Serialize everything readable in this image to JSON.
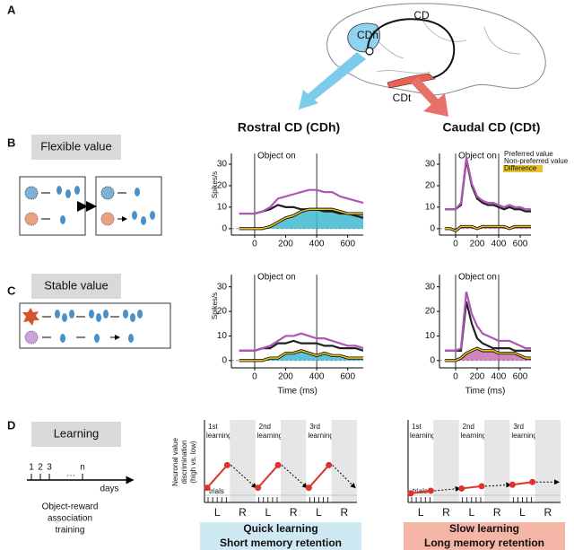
{
  "panel_labels": [
    "A",
    "B",
    "C",
    "D"
  ],
  "brain": {
    "labels": [
      "CD",
      "CDh",
      "CDt"
    ]
  },
  "titles": [
    "Rostral CD (CDh)",
    "Caudal CD (CDt)"
  ],
  "conditions": [
    "Flexible value",
    "Stable value"
  ],
  "event_label": "Object on",
  "y_label": "Spikes/s",
  "x_label": "Time (ms)",
  "series_names": [
    "Preferred value",
    "Non-preferred value",
    "Difference"
  ],
  "series_colors": [
    "#b055b4",
    "#222222",
    "#e8c22a"
  ],
  "x": [
    -100,
    -50,
    0,
    50,
    100,
    150,
    200,
    250,
    300,
    350,
    400,
    450,
    500,
    550,
    600,
    650,
    700
  ],
  "xlim": [
    -150,
    700
  ],
  "xticks": [
    0,
    200,
    400,
    600
  ],
  "ylim": [
    -3,
    35
  ],
  "yticks": [
    0,
    10,
    20,
    30
  ],
  "event_times": [
    0,
    400
  ],
  "plots": [
    {
      "show_y_label": true,
      "show_x_label": false,
      "legend": false,
      "fill": "#3fb8d2",
      "values": [
        [
          7,
          7,
          7,
          8,
          10,
          14,
          15,
          16,
          17,
          18,
          18,
          17,
          17,
          15,
          14,
          13,
          12
        ],
        [
          7,
          7,
          7,
          8,
          9,
          11,
          10,
          10,
          9,
          9,
          9,
          8,
          8,
          7,
          7,
          6,
          5
        ],
        [
          0,
          0,
          0,
          0,
          1,
          3,
          5,
          6,
          8,
          9,
          9,
          9,
          9,
          8,
          7,
          7,
          7
        ]
      ]
    },
    {
      "show_y_label": false,
      "show_x_label": false,
      "legend": true,
      "fill": "#c870b0",
      "values": [
        [
          9,
          9,
          9,
          12,
          33,
          21,
          15,
          13,
          12,
          12,
          11,
          10,
          11,
          10,
          10,
          9,
          9
        ],
        [
          9,
          9,
          9,
          11,
          32,
          20,
          14,
          12,
          11,
          11,
          10,
          9,
          10,
          9,
          9,
          8,
          8
        ],
        [
          0,
          0,
          -1,
          1,
          1,
          1,
          0,
          1,
          1,
          1,
          1,
          1,
          0,
          1,
          1,
          1,
          1
        ]
      ]
    },
    {
      "show_y_label": true,
      "show_x_label": true,
      "legend": false,
      "fill": "#3fb8d2",
      "values": [
        [
          4,
          4,
          4,
          5,
          6,
          8,
          10,
          10,
          11,
          10,
          9,
          9,
          8,
          7,
          6,
          6,
          5
        ],
        [
          4,
          4,
          4,
          5,
          5,
          7,
          7,
          8,
          7,
          7,
          7,
          6,
          6,
          5,
          5,
          5,
          4
        ],
        [
          0,
          0,
          0,
          0,
          1,
          1,
          3,
          3,
          4,
          3,
          2,
          3,
          2,
          2,
          1,
          1,
          1
        ]
      ]
    },
    {
      "show_y_label": false,
      "show_x_label": true,
      "legend": false,
      "fill": "#c870b0",
      "values": [
        [
          4,
          4,
          4,
          5,
          28,
          19,
          14,
          11,
          10,
          9,
          8,
          8,
          8,
          7,
          6,
          5,
          5
        ],
        [
          4,
          4,
          4,
          4,
          24,
          15,
          9,
          7,
          6,
          5,
          5,
          5,
          5,
          4,
          4,
          4,
          4
        ],
        [
          0,
          0,
          0,
          1,
          3,
          4,
          5,
          4,
          4,
          4,
          3,
          3,
          3,
          3,
          2,
          1,
          1
        ]
      ]
    }
  ],
  "learning": {
    "box": "Learning",
    "timeline_ticks": [
      "1",
      "2",
      "3",
      "n"
    ],
    "days": "days",
    "training": [
      "Object-reward",
      "association",
      "training"
    ],
    "y_label": [
      "Neuronal value",
      "discrimination",
      "(high vs. low)"
    ],
    "learning_labels": [
      "1st",
      "2nd",
      "3rd"
    ],
    "learning_word": "learning",
    "trials": "trials",
    "columns": [
      "L",
      "R",
      "L",
      "R",
      "L",
      "R"
    ],
    "ylim": [
      0,
      1
    ],
    "plots": [
      {
        "caption": [
          "Quick learning",
          "Short memory retention"
        ],
        "caption_color": "#cfe9f3",
        "values": [
          [
            0.2,
            0.8
          ],
          [
            0.2,
            0.8
          ],
          [
            0.2,
            0.8
          ]
        ]
      },
      {
        "caption": [
          "Slow learning",
          "Long memory retention"
        ],
        "caption_color": "#f4b4a6",
        "values": [
          [
            0.05,
            0.12
          ],
          [
            0.18,
            0.24
          ],
          [
            0.28,
            0.35
          ]
        ]
      }
    ]
  }
}
